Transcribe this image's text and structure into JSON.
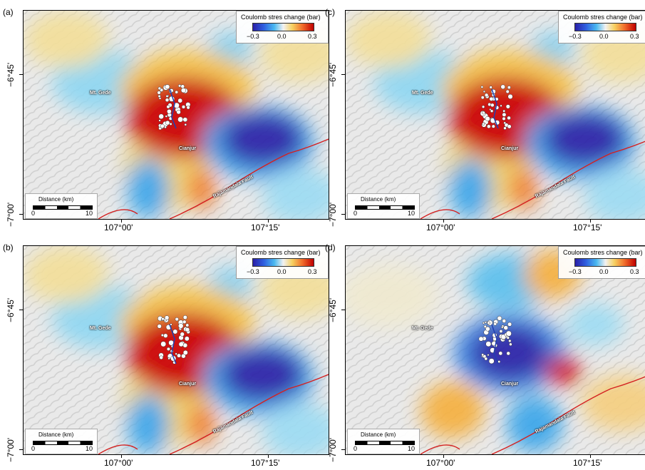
{
  "panels": [
    {
      "id": "a",
      "label": "(a)",
      "legend_title": "Coulomb stres change (bar)",
      "cb_min": "−0.3",
      "cb_mid": "0.0",
      "cb_max": "0.3",
      "scale_title": "Distance (km)",
      "scale_min": "0",
      "scale_max": "10",
      "lat_top": "−6°45'",
      "lat_bottom": "−7°00'",
      "lon_left": "107°00'",
      "lon_right": "107°15'",
      "place_gede": "Mt. Gede",
      "place_cianjur": "Cianjur",
      "fault": "Rajamandala Fault",
      "pattern": "positive-lobes"
    },
    {
      "id": "c",
      "label": "(c)",
      "legend_title": "Coulomb stres change (bar)",
      "cb_min": "−0.3",
      "cb_mid": "0.0",
      "cb_max": "0.3",
      "scale_title": "Distance (km)",
      "scale_min": "0",
      "scale_max": "10",
      "lat_top": "−6°45'",
      "lat_bottom": "−7°00'",
      "lon_left": "107°00'",
      "lon_right": "107°15'",
      "place_gede": "Mt. Gede",
      "place_cianjur": "Cianjur",
      "fault": "Rajamandala Fault",
      "pattern": "positive-lobes"
    },
    {
      "id": "b",
      "label": "(b)",
      "legend_title": "Coulomb stres change (bar)",
      "cb_min": "−0.3",
      "cb_mid": "0.0",
      "cb_max": "0.3",
      "scale_title": "Distance (km)",
      "scale_min": "0",
      "scale_max": "10",
      "lat_top": "−6°45'",
      "lat_bottom": "−7°00'",
      "lon_left": "107°00'",
      "lon_right": "107°15'",
      "place_gede": "Mt. Gede",
      "place_cianjur": "Cianjur",
      "fault": "Rajamandala Fault",
      "pattern": "positive-lobes"
    },
    {
      "id": "d",
      "label": "(d)",
      "legend_title": "Coulomb stres change (bar)",
      "cb_min": "−0.3",
      "cb_mid": "0.0",
      "cb_max": "0.3",
      "scale_title": "Distance (km)",
      "scale_min": "0",
      "scale_max": "10",
      "lat_top": "−6°45'",
      "lat_bottom": "−7°00'",
      "lon_left": "107°00'",
      "lon_right": "107°15'",
      "place_gede": "Mt. Gede",
      "place_cianjur": "Cianjur",
      "fault": "Rajamandala Fault",
      "pattern": "negative-center"
    }
  ],
  "colors": {
    "positive": "#cc0000",
    "negative": "#2a20a8",
    "fault": "#d42020"
  }
}
